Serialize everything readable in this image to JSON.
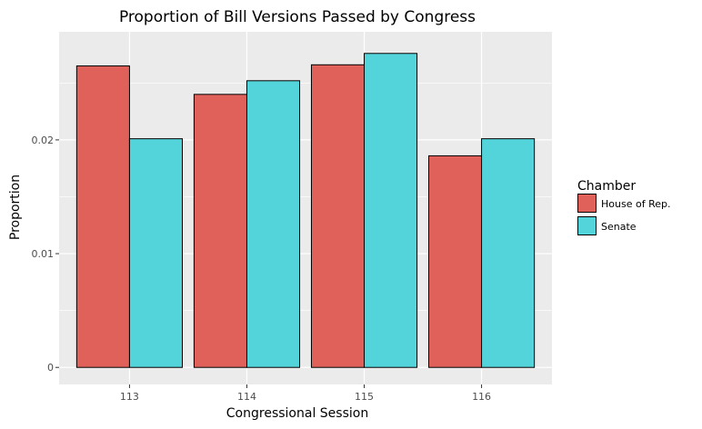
{
  "chart_data": {
    "type": "bar",
    "title": "Proportion of Bill Versions Passed by Congress",
    "xlabel": "Congressional Session",
    "ylabel": "Proportion",
    "categories": [
      "113",
      "114",
      "115",
      "116"
    ],
    "series": [
      {
        "name": "House of Rep.",
        "color": "#E0605A",
        "values": [
          0.0265,
          0.024,
          0.0266,
          0.0186
        ]
      },
      {
        "name": "Senate",
        "color": "#53D3DA",
        "values": [
          0.0201,
          0.0252,
          0.0276,
          0.0201
        ]
      }
    ],
    "ylim": [
      -0.0015,
      0.0295
    ],
    "yticks": [
      0,
      0.01,
      0.02
    ],
    "ytick_labels": [
      "0",
      "0.01",
      "0.02"
    ],
    "grid": true,
    "legend": {
      "title": "Chamber",
      "position": "right"
    },
    "panel_background": "#EBEBEB",
    "grid_color": "#FFFFFF"
  }
}
